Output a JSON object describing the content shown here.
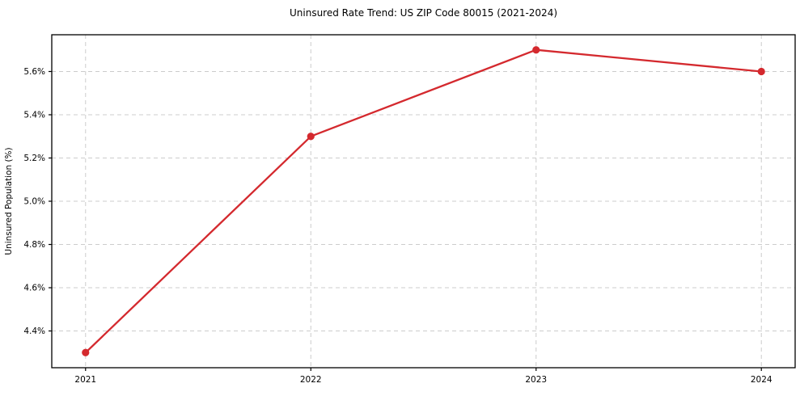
{
  "chart_data": {
    "type": "line",
    "title": "Uninsured Rate Trend: US ZIP Code 80015 (2021-2024)",
    "xlabel": "",
    "ylabel": "Uninsured Population (%)",
    "x": [
      2021,
      2022,
      2023,
      2024
    ],
    "series": [
      {
        "name": "uninsured-rate",
        "values": [
          4.3,
          5.3,
          5.7,
          5.6
        ],
        "color": "#d4292e",
        "marker": "circle"
      }
    ],
    "xticks": {
      "values": [
        2021,
        2022,
        2023,
        2024
      ],
      "labels": [
        "2021",
        "2022",
        "2023",
        "2024"
      ]
    },
    "yticks": {
      "values": [
        4.4,
        4.6,
        4.8,
        5.0,
        5.2,
        5.4,
        5.6
      ],
      "labels": [
        "4.4%",
        "4.6%",
        "4.8%",
        "5.0%",
        "5.2%",
        "5.4%",
        "5.6%"
      ]
    },
    "xlim": [
      2020.85,
      2024.15
    ],
    "ylim": [
      4.23,
      5.77
    ],
    "grid": true,
    "grid_style": "dashed",
    "grid_color": "#cccccc",
    "spine_color": "#000000",
    "tick_color": "#000000",
    "text_color": "#000000",
    "legend": "none"
  }
}
